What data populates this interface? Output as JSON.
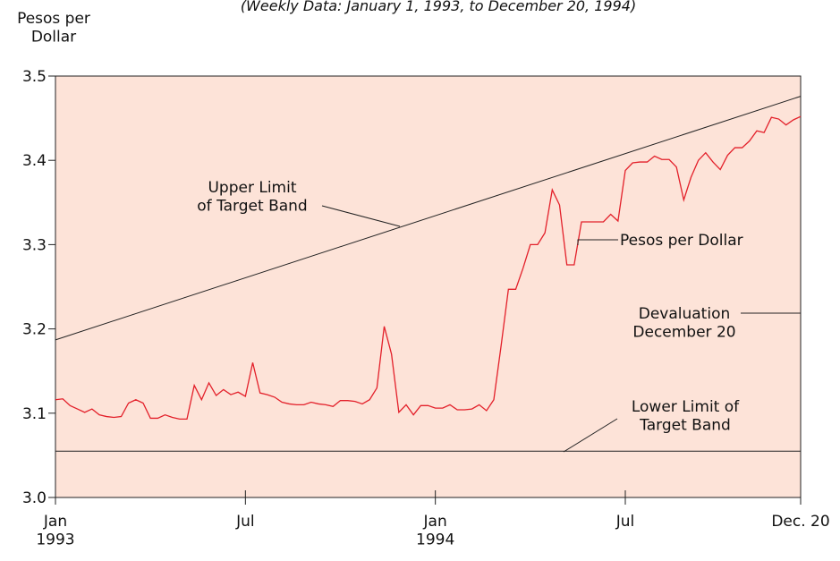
{
  "chart_data": {
    "type": "line",
    "title": "(Weekly Data: January 1, 1993, to December 20, 1994)",
    "y_label": "Pesos per\nDollar",
    "x": [
      0,
      1,
      2,
      3,
      4,
      5,
      6,
      7,
      8,
      9,
      10,
      11,
      12,
      13,
      14,
      15,
      16,
      17,
      18,
      19,
      20,
      21,
      22,
      23,
      24,
      25,
      26,
      27,
      28,
      29,
      30,
      31,
      32,
      33,
      34,
      35,
      36,
      37,
      38,
      39,
      40,
      41,
      42,
      43,
      44,
      45,
      46,
      47,
      48,
      49,
      50,
      51,
      52,
      53,
      54,
      55,
      56,
      57,
      58,
      59,
      60,
      61,
      62,
      63,
      64,
      65,
      66,
      67,
      68,
      69,
      70,
      71,
      72,
      73,
      74,
      75,
      76,
      77,
      78,
      79,
      80,
      81,
      82,
      83,
      84,
      85,
      86,
      87,
      88,
      89,
      90,
      91,
      92,
      93,
      94,
      95,
      96,
      97,
      98,
      99,
      100,
      101,
      102
    ],
    "series": [
      {
        "name": "Pesos per Dollar",
        "color": "#e3202a",
        "values": [
          3.116,
          3.117,
          3.109,
          3.105,
          3.101,
          3.105,
          3.098,
          3.096,
          3.095,
          3.096,
          3.112,
          3.116,
          3.112,
          3.094,
          3.094,
          3.098,
          3.095,
          3.093,
          3.093,
          3.133,
          3.116,
          3.136,
          3.121,
          3.128,
          3.122,
          3.125,
          3.12,
          3.16,
          3.124,
          3.122,
          3.119,
          3.113,
          3.111,
          3.11,
          3.11,
          3.113,
          3.111,
          3.11,
          3.108,
          3.115,
          3.115,
          3.114,
          3.111,
          3.116,
          3.13,
          3.203,
          3.17,
          3.101,
          3.11,
          3.098,
          3.109,
          3.109,
          3.106,
          3.106,
          3.11,
          3.104,
          3.104,
          3.105,
          3.11,
          3.103,
          3.116,
          3.18,
          3.247,
          3.247,
          3.272,
          3.3,
          3.3,
          3.314,
          3.365,
          3.347,
          3.276,
          3.276,
          3.327,
          3.327,
          3.327,
          3.327,
          3.336,
          3.328,
          3.388,
          3.397,
          3.398,
          3.398,
          3.405,
          3.401,
          3.401,
          3.392,
          3.353,
          3.38,
          3.4,
          3.409,
          3.398,
          3.389,
          3.406,
          3.415,
          3.415,
          3.423,
          3.435,
          3.433,
          3.451,
          3.449,
          3.442,
          3.448,
          3.452
        ]
      }
    ],
    "limits": [
      {
        "name": "Upper Limit\nof Target Band",
        "x": [
          0,
          102
        ],
        "values": [
          3.187,
          3.476
        ]
      },
      {
        "name": "Lower Limit of\nTarget Band",
        "x": [
          0,
          102
        ],
        "values": [
          3.055,
          3.055
        ]
      }
    ],
    "annotations": [
      {
        "text": "Devaluation\nDecember 20"
      }
    ],
    "xlim": [
      0,
      102
    ],
    "xticks": [
      {
        "value": 0,
        "label": "Jan\n1993"
      },
      {
        "value": 26,
        "label": "Jul"
      },
      {
        "value": 52,
        "label": "Jan\n1994"
      },
      {
        "value": 78,
        "label": "Jul"
      },
      {
        "value": 102,
        "label": "Dec. 20"
      }
    ],
    "ylim": [
      3.0,
      3.5
    ],
    "yticks": [
      {
        "value": 3.0,
        "label": "3.0"
      },
      3.1,
      3.2,
      3.3,
      3.4,
      {
        "value": 3.5,
        "label": "3.5"
      }
    ],
    "background": "#fde3d8"
  }
}
